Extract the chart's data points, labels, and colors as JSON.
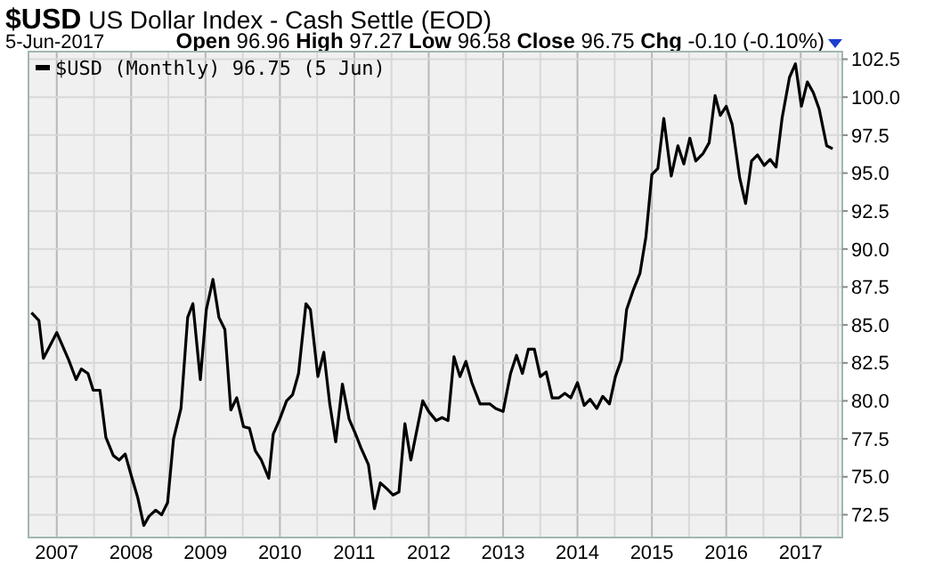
{
  "chart_data": {
    "type": "line",
    "title": "$USD US Dollar Index - Cash Settle (EOD)",
    "subtitle": "5-Jun-2017",
    "annotations": [
      "Open 96.96 High 97.27 Low 96.58 Close 96.75 Chg -0.10 (-0.10%)"
    ],
    "x": [
      2006.66,
      2006.76,
      2006.82,
      2007.0,
      2007.16,
      2007.26,
      2007.33,
      2007.42,
      2007.49,
      2007.58,
      2007.66,
      2007.76,
      2007.84,
      2007.92,
      2008.0,
      2008.09,
      2008.17,
      2008.24,
      2008.33,
      2008.41,
      2008.49,
      2008.57,
      2008.67,
      2008.76,
      2008.83,
      2008.93,
      2009.01,
      2009.1,
      2009.18,
      2009.26,
      2009.34,
      2009.42,
      2009.51,
      2009.59,
      2009.67,
      2009.75,
      2009.85,
      2009.91,
      2009.99,
      2010.09,
      2010.17,
      2010.25,
      2010.35,
      2010.41,
      2010.51,
      2010.59,
      2010.67,
      2010.75,
      2010.84,
      2010.93,
      2011.01,
      2011.09,
      2011.19,
      2011.27,
      2011.35,
      2011.44,
      2011.52,
      2011.6,
      2011.68,
      2011.76,
      2011.92,
      2012.0,
      2012.1,
      2012.18,
      2012.26,
      2012.34,
      2012.42,
      2012.5,
      2012.58,
      2012.69,
      2012.82,
      2012.9,
      2013.0,
      2013.1,
      2013.18,
      2013.26,
      2013.34,
      2013.42,
      2013.5,
      2013.58,
      2013.66,
      2013.75,
      2013.83,
      2013.91,
      2014.0,
      2014.09,
      2014.17,
      2014.26,
      2014.34,
      2014.43,
      2014.51,
      2014.59,
      2014.66,
      2014.75,
      2014.84,
      2014.92,
      2015.0,
      2015.08,
      2015.16,
      2015.26,
      2015.35,
      2015.43,
      2015.51,
      2015.59,
      2015.69,
      2015.77,
      2015.85,
      2015.92,
      2016.0,
      2016.08,
      2016.18,
      2016.26,
      2016.34,
      2016.42,
      2016.51,
      2016.59,
      2016.67,
      2016.75,
      2016.85,
      2016.93,
      2017.01,
      2017.09,
      2017.17,
      2017.25,
      2017.35,
      2017.43
    ],
    "series": [
      {
        "name": "$USD (Monthly) 96.75 (5 Jun)",
        "color": "#000000",
        "values": [
          85.8,
          85.3,
          82.8,
          84.5,
          82.7,
          81.4,
          82.1,
          81.8,
          80.7,
          80.7,
          77.6,
          76.4,
          76.1,
          76.5,
          75.1,
          73.6,
          71.8,
          72.4,
          72.8,
          72.5,
          73.3,
          77.5,
          79.5,
          85.5,
          86.4,
          81.4,
          86.0,
          88.0,
          85.5,
          84.7,
          79.4,
          80.2,
          78.3,
          78.2,
          76.7,
          76.1,
          74.9,
          77.8,
          78.7,
          80.0,
          80.4,
          81.8,
          86.4,
          86.0,
          81.6,
          83.2,
          79.8,
          77.3,
          81.1,
          78.8,
          77.9,
          76.9,
          75.8,
          72.9,
          74.6,
          74.2,
          73.8,
          74.0,
          78.5,
          76.1,
          80.0,
          79.3,
          78.7,
          78.9,
          78.7,
          82.9,
          81.6,
          82.6,
          81.2,
          79.8,
          79.8,
          79.5,
          79.3,
          81.8,
          83.0,
          81.8,
          83.4,
          83.4,
          81.6,
          81.9,
          80.2,
          80.2,
          80.5,
          80.2,
          81.2,
          79.7,
          80.1,
          79.5,
          80.3,
          79.8,
          81.6,
          82.7,
          86.0,
          87.3,
          88.4,
          90.8,
          94.9,
          95.3,
          98.6,
          94.8,
          96.8,
          95.6,
          97.3,
          95.8,
          96.3,
          97.0,
          100.1,
          98.8,
          99.4,
          98.2,
          94.7,
          93.0,
          95.8,
          96.2,
          95.5,
          95.9,
          95.4,
          98.6,
          101.3,
          102.2,
          99.4,
          101.0,
          100.3,
          99.2,
          96.8,
          96.6
        ]
      }
    ],
    "xlim": [
      2006.62,
      2017.56
    ],
    "xticks": [
      2007,
      {
        "value": 2007.5,
        "label": null
      },
      2008,
      {
        "value": 2008.5,
        "label": null
      },
      2009,
      {
        "value": 2009.5,
        "label": null
      },
      2010,
      {
        "value": 2010.5,
        "label": null
      },
      2011,
      {
        "value": 2011.5,
        "label": null
      },
      2012,
      {
        "value": 2012.5,
        "label": null
      },
      2013,
      {
        "value": 2013.5,
        "label": null
      },
      2014,
      {
        "value": 2014.5,
        "label": null
      },
      2015,
      {
        "value": 2015.5,
        "label": null
      },
      2016,
      {
        "value": 2016.5,
        "label": null
      },
      2017,
      {
        "value": 2017.5,
        "label": null
      }
    ],
    "ylim": [
      71,
      103
    ],
    "yticks": [
      72.5,
      {
        "value": 75,
        "label": "75.0"
      },
      77.5,
      {
        "value": 80,
        "label": "80.0"
      },
      82.5,
      {
        "value": 85,
        "label": "85.0"
      },
      87.5,
      {
        "value": 90,
        "label": "90.0"
      },
      92.5,
      {
        "value": 95,
        "label": "95.0"
      },
      97.5,
      {
        "value": 100,
        "label": "100.0"
      },
      102.5
    ],
    "grid": true,
    "legend": "top left",
    "line_style": "solid",
    "marker": "none"
  }
}
